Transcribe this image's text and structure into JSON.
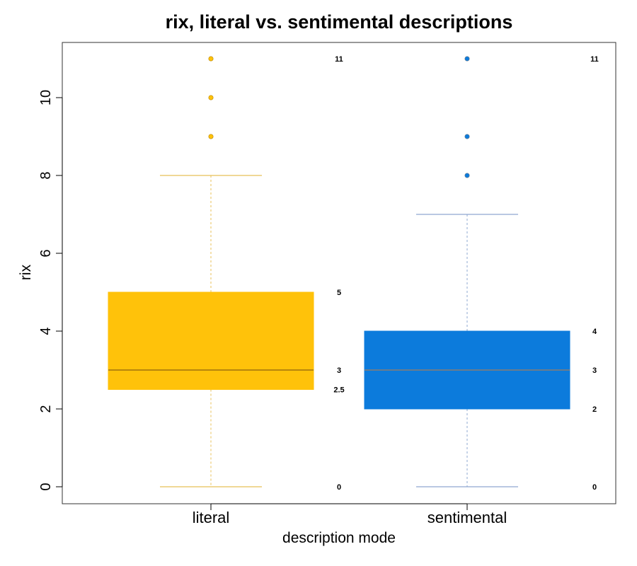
{
  "chart_data": {
    "type": "box",
    "title": "rix, literal vs. sentimental descriptions",
    "xlabel": "description mode",
    "ylabel": "rix",
    "ylim": [
      -0.4,
      11.5
    ],
    "yticks": [
      0,
      2,
      4,
      6,
      8,
      10
    ],
    "ytick_labels": [
      "0",
      "2",
      "4",
      "6",
      "8",
      "10"
    ],
    "grid": false,
    "categories": [
      "literal",
      "sentimental"
    ],
    "series": [
      {
        "category": "literal",
        "color": "#FFC20A",
        "median_color": "#B8860B",
        "whisker_color": "#E8C058",
        "whisker_low": 0,
        "q1": 2.5,
        "median": 3,
        "q3": 5,
        "whisker_high": 8,
        "outliers": [
          9,
          10,
          11
        ],
        "stat_labels": [
          {
            "value": 11,
            "text": "11"
          },
          {
            "value": 5,
            "text": "5"
          },
          {
            "value": 3,
            "text": "3"
          },
          {
            "value": 2.5,
            "text": "2.5"
          },
          {
            "value": 0,
            "text": "0"
          }
        ]
      },
      {
        "category": "sentimental",
        "color": "#0C7BDC",
        "median_color": "#6B7C8C",
        "whisker_color": "#8FA8D0",
        "whisker_low": 0,
        "q1": 2,
        "median": 3,
        "q3": 4,
        "whisker_high": 7,
        "outliers": [
          8,
          9,
          11
        ],
        "stat_labels": [
          {
            "value": 11,
            "text": "11"
          },
          {
            "value": 4,
            "text": "4"
          },
          {
            "value": 3,
            "text": "3"
          },
          {
            "value": 2,
            "text": "2"
          },
          {
            "value": 0,
            "text": "0"
          }
        ]
      }
    ]
  }
}
